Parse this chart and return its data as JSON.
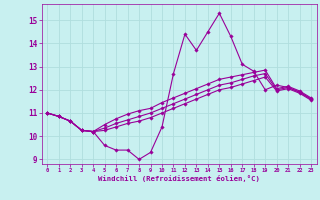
{
  "xlabel": "Windchill (Refroidissement éolien,°C)",
  "xlim": [
    -0.5,
    23.5
  ],
  "ylim": [
    8.8,
    15.7
  ],
  "yticks": [
    9,
    10,
    11,
    12,
    13,
    14,
    15
  ],
  "xticks": [
    0,
    1,
    2,
    3,
    4,
    5,
    6,
    7,
    8,
    9,
    10,
    11,
    12,
    13,
    14,
    15,
    16,
    17,
    18,
    19,
    20,
    21,
    22,
    23
  ],
  "bg_color": "#c8f0f0",
  "line_color": "#990099",
  "grid_color": "#b0dede",
  "series": [
    [
      11.0,
      10.85,
      10.65,
      10.25,
      10.2,
      9.6,
      9.4,
      9.4,
      9.0,
      9.3,
      10.4,
      12.7,
      14.4,
      13.7,
      14.5,
      15.3,
      14.3,
      13.1,
      12.8,
      12.0,
      12.2,
      12.1,
      11.9,
      11.6
    ],
    [
      11.0,
      10.85,
      10.65,
      10.25,
      10.2,
      10.5,
      10.75,
      10.95,
      11.1,
      11.2,
      11.45,
      11.65,
      11.85,
      12.05,
      12.25,
      12.45,
      12.55,
      12.65,
      12.75,
      12.85,
      12.05,
      12.15,
      11.95,
      11.65
    ],
    [
      11.0,
      10.85,
      10.65,
      10.25,
      10.2,
      10.35,
      10.55,
      10.7,
      10.85,
      11.0,
      11.2,
      11.4,
      11.6,
      11.8,
      12.0,
      12.2,
      12.3,
      12.45,
      12.6,
      12.7,
      12.0,
      12.1,
      11.9,
      11.6
    ],
    [
      11.0,
      10.85,
      10.65,
      10.25,
      10.2,
      10.25,
      10.4,
      10.55,
      10.65,
      10.8,
      11.0,
      11.2,
      11.4,
      11.6,
      11.8,
      12.0,
      12.1,
      12.25,
      12.4,
      12.55,
      11.95,
      12.05,
      11.85,
      11.55
    ]
  ]
}
